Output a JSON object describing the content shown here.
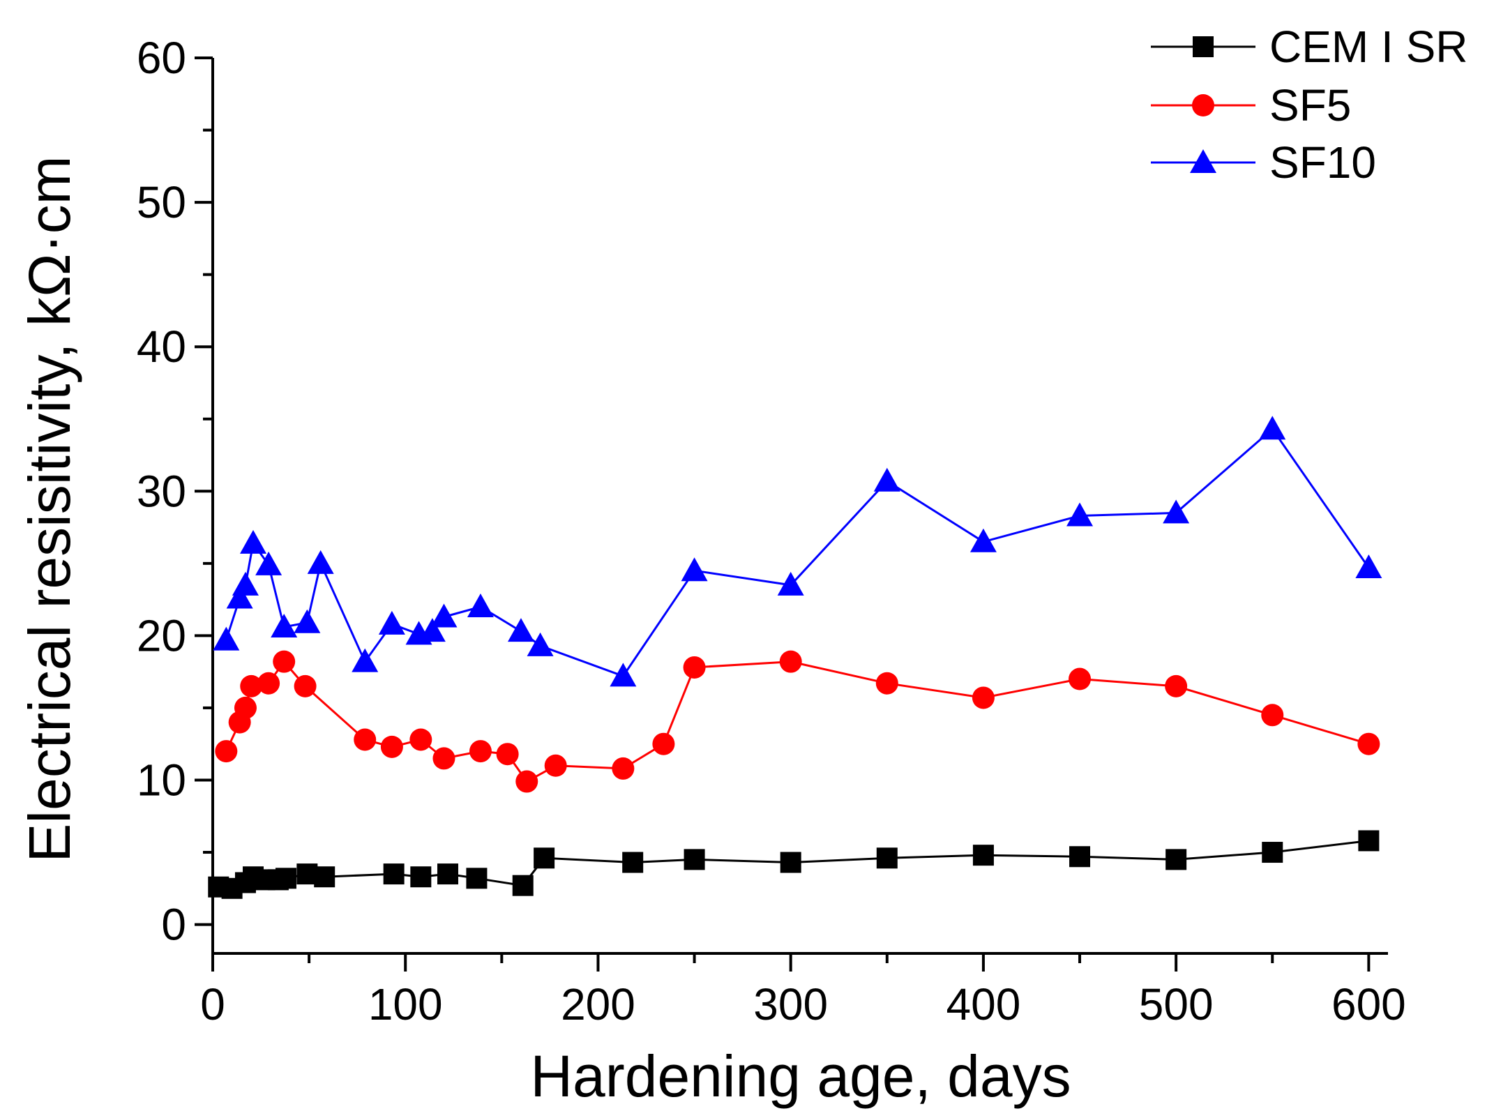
{
  "chart_data": {
    "type": "line",
    "xlabel": "Hardening age, days",
    "ylabel": "Electrical resisitivity, kΩ·cm",
    "xlim": [
      0,
      610
    ],
    "ylim": [
      -2,
      60
    ],
    "xticks": [
      0,
      100,
      200,
      300,
      400,
      500,
      600
    ],
    "yticks": [
      0,
      10,
      20,
      30,
      40,
      50,
      60
    ],
    "grid": false,
    "legend_position": "top-right",
    "series": [
      {
        "name": "CEM I SR",
        "color": "#000000",
        "marker": "square",
        "x": [
          3,
          10,
          17,
          21,
          27,
          34,
          38,
          49,
          58,
          94,
          108,
          122,
          137,
          161,
          172,
          218,
          250,
          300,
          350,
          400,
          450,
          500,
          550,
          600
        ],
        "y": [
          2.6,
          2.5,
          2.9,
          3.3,
          3.1,
          3.1,
          3.2,
          3.5,
          3.3,
          3.5,
          3.3,
          3.5,
          3.2,
          2.7,
          4.6,
          4.3,
          4.5,
          4.3,
          4.6,
          4.8,
          4.7,
          4.5,
          5.0,
          5.8
        ]
      },
      {
        "name": "SF5",
        "color": "#ff0000",
        "marker": "circle",
        "x": [
          7,
          14,
          17,
          20,
          29,
          37,
          48,
          79,
          93,
          108,
          120,
          139,
          153,
          163,
          178,
          213,
          234,
          250,
          300,
          350,
          400,
          450,
          500,
          550,
          600
        ],
        "y": [
          12.0,
          14.0,
          15.0,
          16.5,
          16.7,
          18.2,
          16.5,
          12.8,
          12.3,
          12.8,
          11.5,
          12.0,
          11.8,
          9.9,
          11.0,
          10.8,
          12.5,
          17.8,
          18.2,
          16.7,
          15.7,
          17.0,
          16.5,
          14.5,
          12.5
        ]
      },
      {
        "name": "SF10",
        "color": "#0000ff",
        "marker": "triangle",
        "x": [
          7,
          14,
          17,
          21,
          29,
          37,
          49,
          56,
          79,
          93,
          107,
          114,
          120,
          139,
          160,
          170,
          213,
          250,
          300,
          350,
          400,
          450,
          500,
          550,
          600
        ],
        "y": [
          19.7,
          22.6,
          23.5,
          26.4,
          24.9,
          20.6,
          20.9,
          25.0,
          18.2,
          20.8,
          20.1,
          20.3,
          21.3,
          22.0,
          20.3,
          19.3,
          17.2,
          24.5,
          23.5,
          30.7,
          26.5,
          28.3,
          28.5,
          34.3,
          24.7
        ]
      }
    ]
  }
}
